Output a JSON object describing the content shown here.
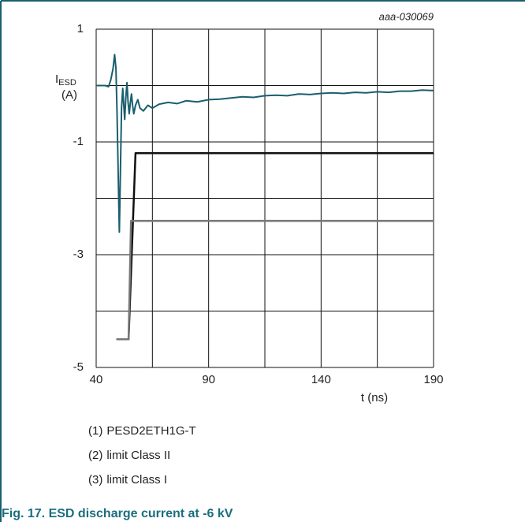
{
  "chart_data": {
    "type": "line",
    "annotation": "aaa-030069",
    "ylabel": {
      "main": "I",
      "sub": "ESD",
      "unit": "(A)"
    },
    "xlabel": "t (ns)",
    "caption": "Fig. 17.  ESD discharge current at -6 kV",
    "xlim": [
      40,
      190
    ],
    "ylim": [
      -5,
      1
    ],
    "xticks": [
      40,
      90,
      140,
      190
    ],
    "yticks": [
      1,
      -1,
      -3,
      -5
    ],
    "xgrid": [
      40,
      65,
      90,
      115,
      140,
      165,
      190
    ],
    "ygrid": [
      1,
      0,
      -1,
      -2,
      -3,
      -4,
      -5
    ],
    "series": [
      {
        "label": "(1)",
        "name": "PESD2ETH1G-T",
        "color": "#1a5e6e",
        "x": [
          40,
          42,
          44,
          45.5,
          46.5,
          47.5,
          48.2,
          48.8,
          49.3,
          49.8,
          50.3,
          50.8,
          51.3,
          51.8,
          52.2,
          52.7,
          53.2,
          53.7,
          54.2,
          54.7,
          55.2,
          55.7,
          56.2,
          56.7,
          57.5,
          58.5,
          59.5,
          61,
          63,
          65,
          68,
          72,
          76,
          80,
          85,
          90,
          95,
          100,
          105,
          110,
          115,
          120,
          125,
          130,
          135,
          140,
          145,
          150,
          155,
          160,
          165,
          170,
          175,
          180,
          185,
          190
        ],
        "values": [
          0,
          0,
          0,
          -0.02,
          0.1,
          0.3,
          0.55,
          0.3,
          -0.5,
          -1.6,
          -2.6,
          -1.5,
          -0.4,
          -0.05,
          -0.3,
          -0.6,
          -0.2,
          0.05,
          -0.3,
          -0.5,
          -0.3,
          -0.15,
          -0.35,
          -0.5,
          -0.35,
          -0.25,
          -0.4,
          -0.45,
          -0.35,
          -0.4,
          -0.33,
          -0.3,
          -0.32,
          -0.27,
          -0.29,
          -0.25,
          -0.24,
          -0.22,
          -0.2,
          -0.21,
          -0.18,
          -0.17,
          -0.18,
          -0.15,
          -0.16,
          -0.14,
          -0.13,
          -0.14,
          -0.12,
          -0.13,
          -0.11,
          -0.12,
          -0.1,
          -0.1,
          -0.08,
          -0.09
        ],
        "label_at": [
          163,
          -0.05
        ]
      },
      {
        "label": "(2)",
        "name": "limit Class II",
        "color": "#111111",
        "x": [
          49,
          54.4,
          57.5,
          190
        ],
        "values": [
          -4.5,
          -4.5,
          -1.2,
          -1.2
        ],
        "label_at": [
          156,
          -1
        ]
      },
      {
        "label": "(3)",
        "name": "limit Class I",
        "color": "#777777",
        "x": [
          49,
          54.4,
          55.5,
          190
        ],
        "values": [
          -4.5,
          -4.5,
          -2.4,
          -2.4
        ],
        "label_at": [
          156,
          -2.2
        ]
      }
    ]
  }
}
